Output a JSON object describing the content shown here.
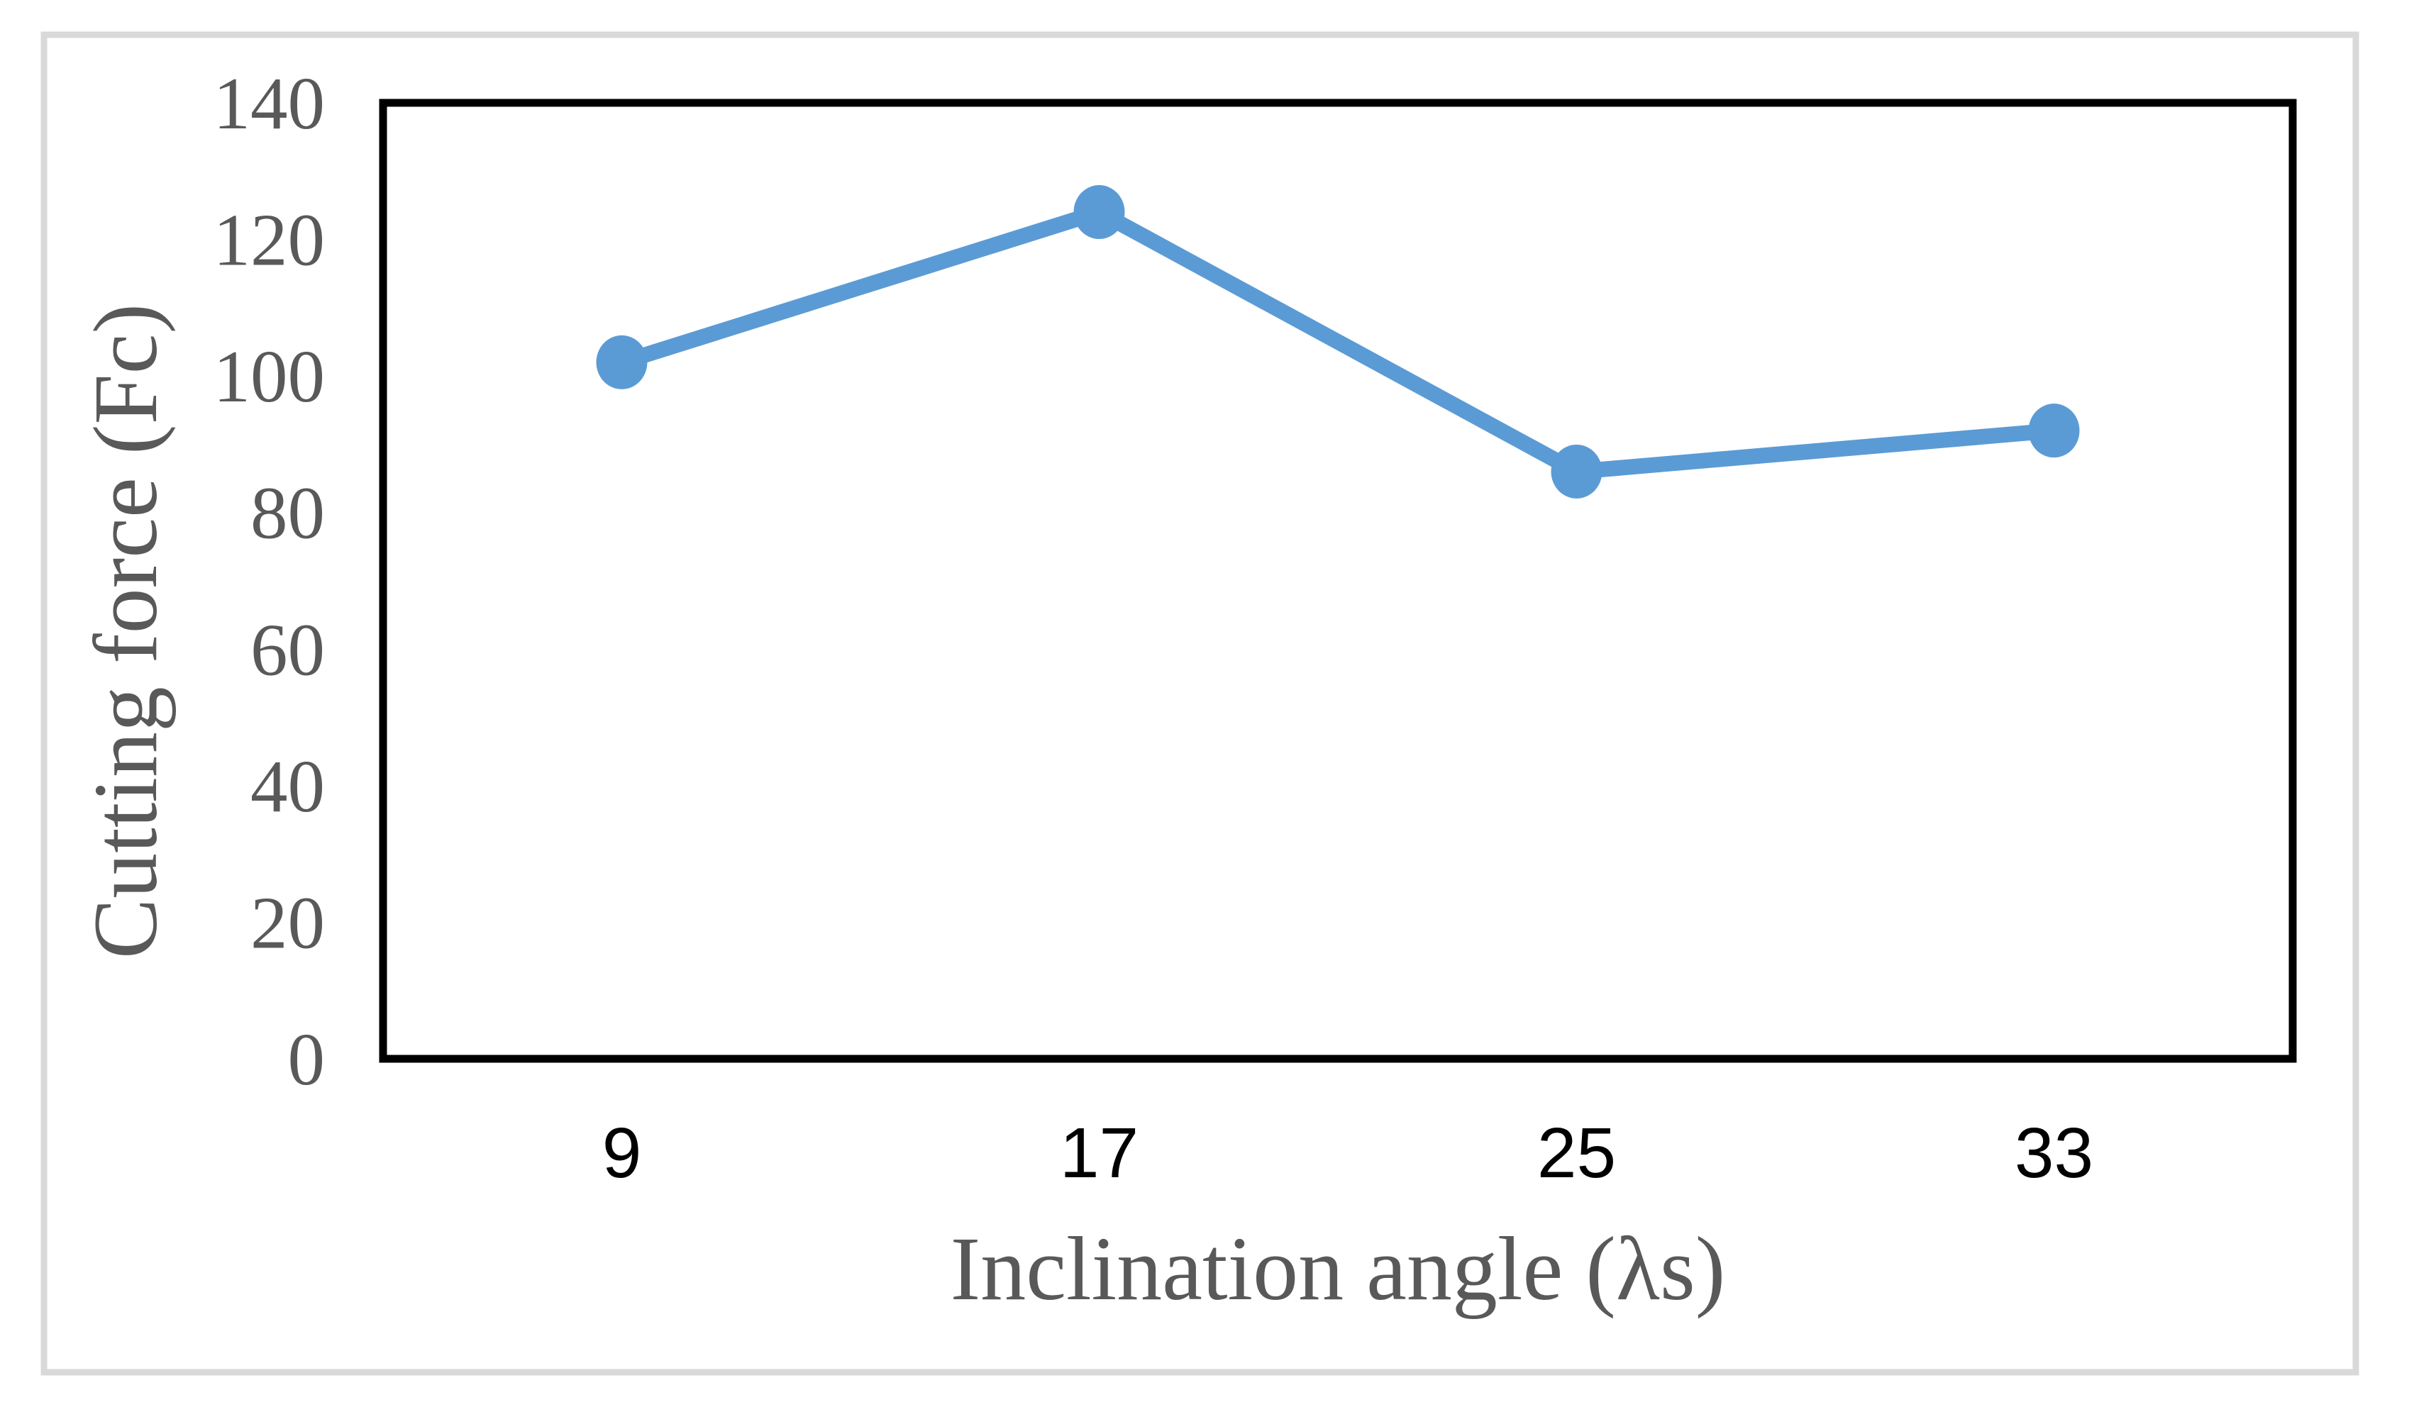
{
  "figure": {
    "background": "#FFFFFF",
    "border_color": "#D9D9D9"
  },
  "chart_data": {
    "type": "line",
    "title": "",
    "xlabel": "Inclination angle (λs)",
    "ylabel": "Cutting force (Fc)",
    "categories": [
      "9",
      "17",
      "25",
      "33"
    ],
    "series": [
      {
        "name": "Cutting force (Fc)",
        "values": [
          102,
          124,
          86,
          92
        ]
      }
    ],
    "ylim": [
      0,
      140
    ],
    "yticks": [
      0,
      20,
      40,
      60,
      80,
      100,
      120,
      140
    ],
    "grid": false,
    "legend_position": "none",
    "marker": "circle",
    "colors": {
      "line": "#5B9BD5",
      "marker": "#5B9BD5",
      "plot_border": "#000000",
      "y_tick_label": "#595959",
      "x_tick_label": "#000000",
      "axis_title": "#595959",
      "figure_border": "#D9D9D9",
      "background": "#FFFFFF"
    }
  }
}
